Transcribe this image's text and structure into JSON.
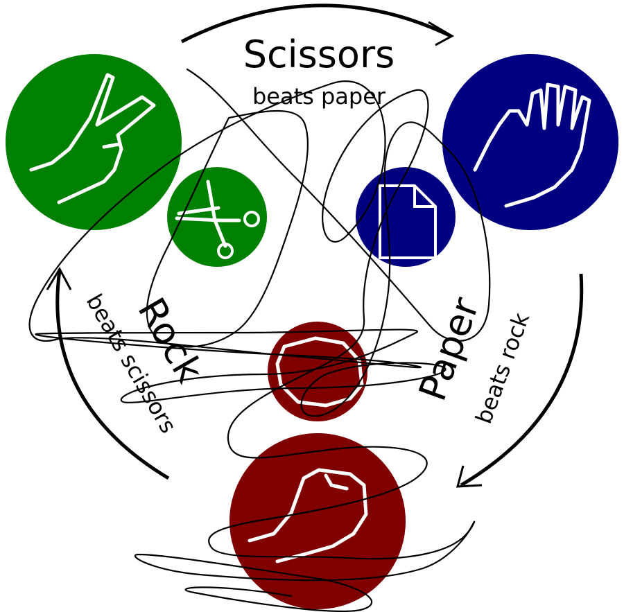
{
  "diagram": {
    "scissors": {
      "title": "Scissors",
      "subtitle": "beats paper",
      "color": "#008000"
    },
    "paper": {
      "title": "Paper",
      "subtitle": "beats rock",
      "color": "#000080"
    },
    "rock": {
      "title": "Rock",
      "subtitle": "beats scissors",
      "color": "#800000"
    }
  }
}
